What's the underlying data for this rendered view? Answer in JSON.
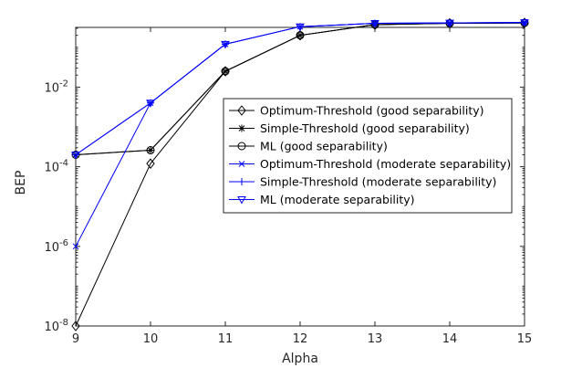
{
  "chart_data": {
    "type": "line",
    "title": "",
    "xlabel": "Alpha",
    "ylabel": "BEP",
    "x": [
      9,
      10,
      11,
      12,
      13,
      14,
      15
    ],
    "xlim": [
      9,
      15
    ],
    "ylim_log10": [
      -8,
      -0.5
    ],
    "y_scale": "log",
    "x_ticks": [
      "9",
      "10",
      "11",
      "12",
      "13",
      "14",
      "15"
    ],
    "y_ticks": [
      {
        "base": "10",
        "exp": "-8",
        "log": -8
      },
      {
        "base": "10",
        "exp": "-6",
        "log": -6
      },
      {
        "base": "10",
        "exp": "-4",
        "log": -4
      },
      {
        "base": "10",
        "exp": "-2",
        "log": -2
      }
    ],
    "grid": false,
    "legend_position": "center-right",
    "series": [
      {
        "name": "Optimum-Threshold (good separability)",
        "color": "#000000",
        "marker": "diamond",
        "values": [
          1e-08,
          0.00012,
          0.025,
          0.2,
          0.37,
          0.4,
          0.41
        ]
      },
      {
        "name": "Simple-Threshold (good separability)",
        "color": "#000000",
        "marker": "asterisk",
        "values": [
          0.0002,
          0.00026,
          0.025,
          0.2,
          0.37,
          0.4,
          0.41
        ]
      },
      {
        "name": "ML (good separability)",
        "color": "#000000",
        "marker": "circle",
        "values": [
          0.0002,
          0.00026,
          0.025,
          0.2,
          0.37,
          0.4,
          0.41
        ]
      },
      {
        "name": "Optimum-Threshold (moderate separability)",
        "color": "#0000ff",
        "marker": "x",
        "values": [
          1e-06,
          0.004,
          0.12,
          0.33,
          0.4,
          0.41,
          0.42
        ]
      },
      {
        "name": "Simple-Threshold (moderate separability)",
        "color": "#0000ff",
        "marker": "plus",
        "values": [
          0.0002,
          0.004,
          0.12,
          0.33,
          0.4,
          0.41,
          0.42
        ]
      },
      {
        "name": "ML (moderate separability)",
        "color": "#0000ff",
        "marker": "triangle-down",
        "values": [
          0.0002,
          0.004,
          0.12,
          0.33,
          0.4,
          0.41,
          0.42
        ]
      }
    ]
  }
}
